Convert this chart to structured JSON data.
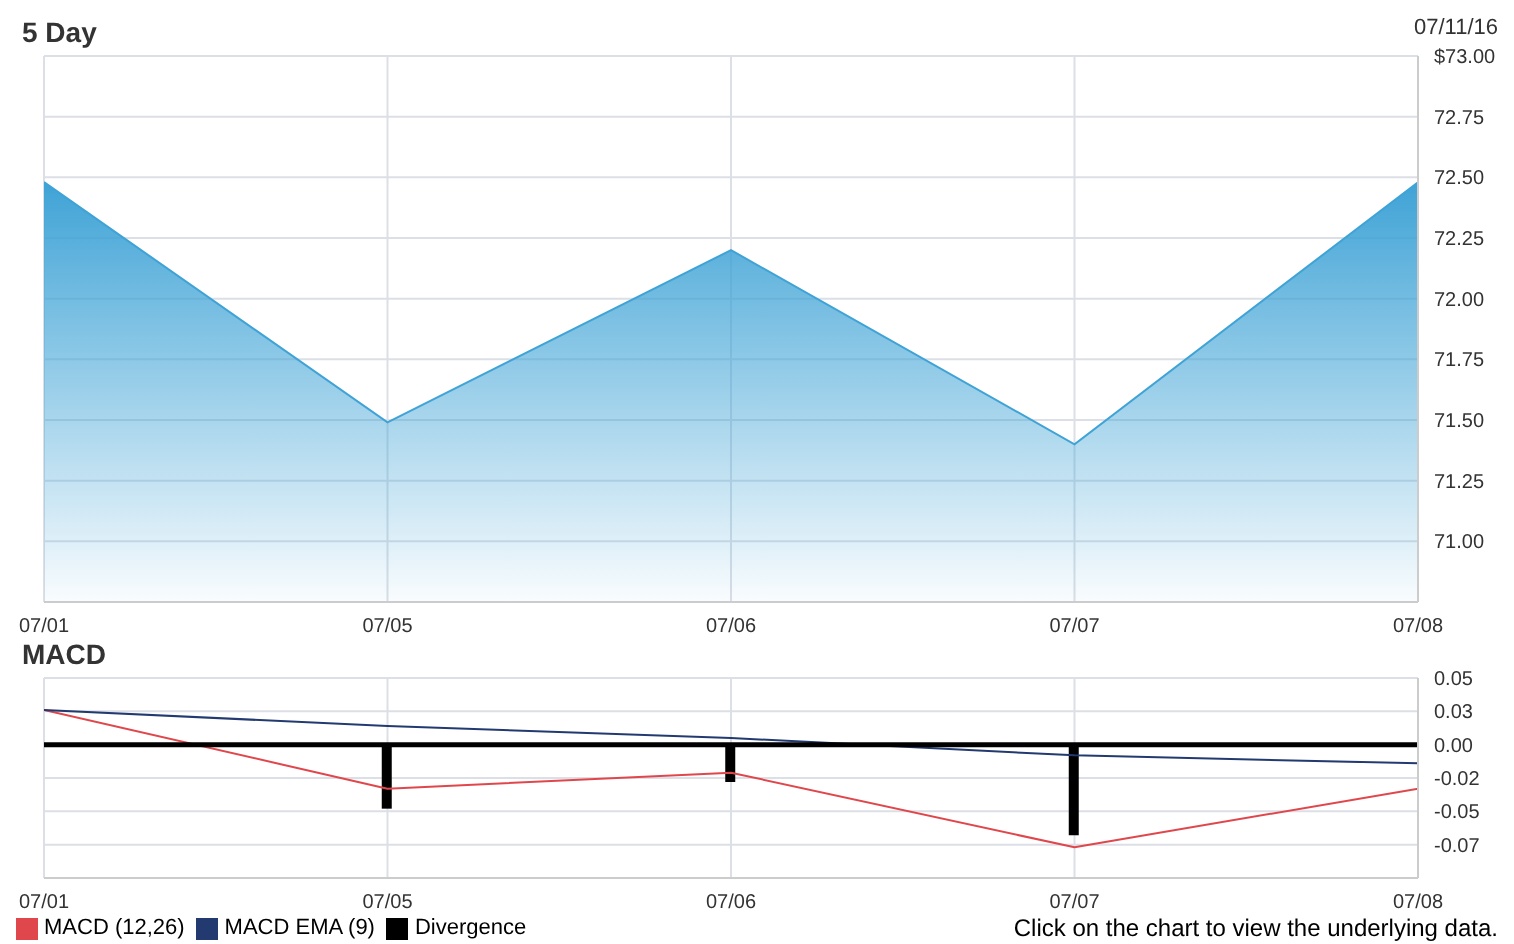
{
  "chart_data": [
    {
      "type": "area",
      "title": "5 Day",
      "subtitle": "07/11/16",
      "categories": [
        "07/01",
        "07/05",
        "07/06",
        "07/07",
        "07/08"
      ],
      "values": [
        72.48,
        71.49,
        72.2,
        71.4,
        72.48
      ],
      "color": "#3fa3d6",
      "ylim": [
        70.75,
        73.0
      ],
      "yticks": [
        {
          "value": 73.0,
          "label": "$73.00"
        },
        {
          "value": 72.75,
          "label": "72.75"
        },
        {
          "value": 72.5,
          "label": "72.50"
        },
        {
          "value": 72.25,
          "label": "72.25"
        },
        {
          "value": 72.0,
          "label": "72.00"
        },
        {
          "value": 71.75,
          "label": "71.75"
        },
        {
          "value": 71.5,
          "label": "71.50"
        },
        {
          "value": 71.25,
          "label": "71.25"
        },
        {
          "value": 71.0,
          "label": "71.00"
        }
      ],
      "grid": true
    },
    {
      "type": "line",
      "title": "MACD",
      "categories": [
        "07/01",
        "07/05",
        "07/06",
        "07/07",
        "07/08"
      ],
      "series": [
        {
          "name": "MACD (12,26)",
          "color": "#e0474c",
          "values": [
            0.026,
            -0.033,
            -0.021,
            -0.077,
            -0.033
          ]
        },
        {
          "name": "MACD EMA (9)",
          "color": "#223a70",
          "values": [
            0.026,
            0.014,
            0.005,
            -0.008,
            -0.014
          ]
        },
        {
          "name": "Divergence",
          "type": "bar",
          "color": "#000000",
          "values": [
            null,
            -0.048,
            -0.028,
            -0.068,
            null
          ]
        }
      ],
      "ylim": [
        -0.1,
        0.05
      ],
      "yticks": [
        {
          "value": 0.05,
          "label": "0.05"
        },
        {
          "value": 0.025,
          "label": "0.03"
        },
        {
          "value": 0,
          "label": "0.00"
        },
        {
          "value": -0.025,
          "label": "-0.02"
        },
        {
          "value": -0.05,
          "label": "-0.05"
        },
        {
          "value": -0.075,
          "label": "-0.07"
        }
      ],
      "ref_lines": [
        {
          "axis": "y",
          "value": 0,
          "color": "#000000"
        }
      ],
      "grid": true,
      "legend": "bottom left",
      "annotations": [
        "Click on the chart to view the underlying data."
      ]
    }
  ]
}
